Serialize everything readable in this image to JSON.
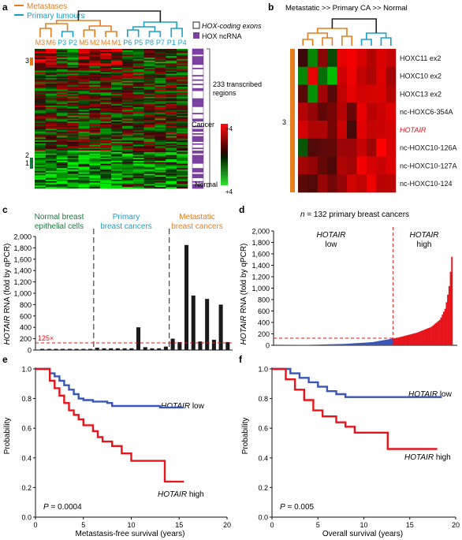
{
  "colors": {
    "metastasis": "#e87d1e",
    "primary": "#1aa0c8",
    "normal_green": "#1a7a3c",
    "hox_purple": "#7b3fa0",
    "red": "#e8141c",
    "blue": "#3a55b5",
    "bar": "#1a1a1a",
    "dashed_red": "#e8141c"
  },
  "panels": {
    "a": {
      "letter": "a",
      "legend_metastases": "Metastases",
      "legend_primary": "Primary tumours",
      "samples": [
        "M3",
        "M6",
        "P3",
        "P2",
        "M5",
        "M2",
        "M4",
        "M1",
        "P6",
        "P5",
        "P8",
        "P7",
        "P1",
        "P4"
      ],
      "sample_groups": [
        "m",
        "m",
        "p",
        "p",
        "m",
        "m",
        "m",
        "m",
        "p",
        "p",
        "p",
        "p",
        "p",
        "p"
      ],
      "key_exons": "HOX-coding exons",
      "key_ncrna": "HOX ncRNA",
      "regions_label_1": "233 transcribed",
      "regions_label_2": "regions",
      "cluster_labels": [
        "3",
        "2",
        "1"
      ],
      "scale_top": "Cancer",
      "scale_bottom": "Normal",
      "scale_top_val": "+4",
      "scale_bottom_val": "+4"
    },
    "b": {
      "letter": "b",
      "title": "Metastatic >> Primary CA >> Normal",
      "cluster_label": "3",
      "genes": [
        "HOXC11 ex2",
        "HOXC10 ex2",
        "HOXC13 ex2",
        "nc-HOXC6-354A",
        "HOTAIR",
        "nc-HOXC10-126A",
        "nc-HOXC10-127A",
        "nc-HOXC10-124"
      ]
    },
    "c": {
      "letter": "c",
      "group_normal_1": "Normal breast",
      "group_normal_2": "epithelial cells",
      "group_primary_1": "Primary",
      "group_primary_2": "breast cancers",
      "group_meta_1": "Metastatic",
      "group_meta_2": "breast cancers",
      "threshold_label": "125×",
      "ylabel_italic": "HOTAIR",
      "ylabel_rest": " RNA (fold by qPCR)"
    },
    "d": {
      "letter": "d",
      "n_prefix": "n",
      "title_rest": " = 132 primary breast cancers",
      "low_label_1": "HOTAIR",
      "low_label_2": "low",
      "high_label_1": "HOTAIR",
      "high_label_2": "high",
      "ylabel_italic": "HOTAIR",
      "ylabel_rest": " RNA (fold by qPCR)"
    },
    "e": {
      "letter": "e",
      "xlabel": "Metastasis-free survival (years)",
      "ylabel": "Probability",
      "low_label_1": "HOTAIR",
      "low_label_2": " low",
      "high_label_1": "HOTAIR",
      "high_label_2": " high",
      "p_label": "P",
      "p_value": " = 0.0004"
    },
    "f": {
      "letter": "f",
      "xlabel": "Overall survival (years)",
      "ylabel": "Probability",
      "low_label_1": "HOTAIR",
      "low_label_2": " low",
      "high_label_1": "HOTAIR",
      "high_label_2": " high",
      "p_label": "P",
      "p_value": " = 0.005"
    }
  },
  "chart_data": [
    {
      "panel": "c",
      "type": "bar",
      "groups": [
        "Normal breast epithelial cells",
        "Primary breast cancers",
        "Metastatic breast cancers"
      ],
      "group_sizes": [
        8,
        11,
        9
      ],
      "values": [
        20,
        20,
        20,
        20,
        20,
        20,
        20,
        20,
        40,
        30,
        30,
        30,
        30,
        30,
        400,
        50,
        30,
        30,
        60,
        200,
        140,
        1850,
        960,
        150,
        900,
        180,
        800,
        140
      ],
      "threshold": 125,
      "ylim": [
        0,
        2000
      ],
      "yticks": [
        0,
        200,
        400,
        600,
        800,
        1000,
        1200,
        1400,
        1600,
        1800,
        2000
      ],
      "yticks_display": [
        "0",
        "200",
        "400",
        "600",
        "800",
        "1,000",
        "1,200",
        "1,400",
        "1,600",
        "1,800",
        "2,000"
      ]
    },
    {
      "panel": "d",
      "type": "area",
      "n": 132,
      "threshold": 125,
      "ylim": [
        0,
        2000
      ],
      "yticks": [
        0,
        200,
        400,
        600,
        800,
        1000,
        1200,
        1400,
        1600,
        1800,
        2000
      ],
      "yticks_display": [
        "0",
        "200",
        "400",
        "600",
        "800",
        "1,000",
        "1,200",
        "1,400",
        "1,600",
        "1,800",
        "2,000"
      ],
      "low_count": 88,
      "sorted_profile": [
        [
          0,
          0
        ],
        [
          0.2,
          8
        ],
        [
          0.4,
          25
        ],
        [
          0.55,
          55
        ],
        [
          0.66,
          115
        ],
        [
          0.7,
          140
        ],
        [
          0.8,
          220
        ],
        [
          0.88,
          320
        ],
        [
          0.93,
          450
        ],
        [
          0.96,
          650
        ],
        [
          0.98,
          1000
        ],
        [
          0.995,
          1500
        ],
        [
          1,
          1700
        ]
      ]
    },
    {
      "panel": "e",
      "type": "line",
      "xlim": [
        0,
        20
      ],
      "ylim": [
        0,
        1.0
      ],
      "xticks": [
        0,
        5,
        10,
        15,
        20
      ],
      "yticks": [
        0,
        0.2,
        0.4,
        0.6,
        0.8,
        1.0
      ],
      "series": [
        {
          "name": "HOTAIR low",
          "color": "#3a55b5",
          "points": [
            [
              0,
              1
            ],
            [
              1,
              1
            ],
            [
              1.5,
              0.97
            ],
            [
              2,
              0.95
            ],
            [
              2.5,
              0.92
            ],
            [
              3,
              0.89
            ],
            [
              3.5,
              0.86
            ],
            [
              4,
              0.83
            ],
            [
              4.5,
              0.8
            ],
            [
              5,
              0.79
            ],
            [
              6,
              0.78
            ],
            [
              7.5,
              0.77
            ],
            [
              8,
              0.75
            ],
            [
              12,
              0.75
            ],
            [
              13,
              0.74
            ],
            [
              15.5,
              0.74
            ]
          ]
        },
        {
          "name": "HOTAIR high",
          "color": "#e8141c",
          "points": [
            [
              0,
              1
            ],
            [
              1,
              1
            ],
            [
              1.5,
              0.92
            ],
            [
              2,
              0.87
            ],
            [
              2.5,
              0.82
            ],
            [
              3,
              0.77
            ],
            [
              3.5,
              0.72
            ],
            [
              4,
              0.69
            ],
            [
              4.5,
              0.66
            ],
            [
              5,
              0.62
            ],
            [
              6,
              0.58
            ],
            [
              6.5,
              0.54
            ],
            [
              7,
              0.51
            ],
            [
              8,
              0.48
            ],
            [
              9,
              0.43
            ],
            [
              10,
              0.38
            ],
            [
              13,
              0.38
            ],
            [
              13.5,
              0.24
            ],
            [
              15.5,
              0.24
            ]
          ]
        }
      ]
    },
    {
      "panel": "f",
      "type": "line",
      "xlim": [
        0,
        20
      ],
      "ylim": [
        0,
        1.0
      ],
      "xticks": [
        0,
        5,
        10,
        15,
        20
      ],
      "yticks": [
        0,
        0.2,
        0.4,
        0.6,
        0.8,
        1.0
      ],
      "series": [
        {
          "name": "HOTAIR low",
          "color": "#3a55b5",
          "points": [
            [
              0,
              1
            ],
            [
              1.5,
              1
            ],
            [
              2,
              0.97
            ],
            [
              3,
              0.94
            ],
            [
              4,
              0.91
            ],
            [
              5,
              0.88
            ],
            [
              6,
              0.85
            ],
            [
              7,
              0.83
            ],
            [
              8,
              0.81
            ],
            [
              12,
              0.81
            ],
            [
              15,
              0.81
            ],
            [
              18.5,
              0.81
            ]
          ]
        },
        {
          "name": "HOTAIR high",
          "color": "#e8141c",
          "points": [
            [
              0,
              1
            ],
            [
              1,
              1
            ],
            [
              1.5,
              0.93
            ],
            [
              2.5,
              0.86
            ],
            [
              3.5,
              0.79
            ],
            [
              4.5,
              0.72
            ],
            [
              5.5,
              0.68
            ],
            [
              7,
              0.64
            ],
            [
              8,
              0.61
            ],
            [
              9,
              0.57
            ],
            [
              12.5,
              0.57
            ],
            [
              12.6,
              0.46
            ],
            [
              18,
              0.46
            ]
          ]
        }
      ]
    }
  ]
}
